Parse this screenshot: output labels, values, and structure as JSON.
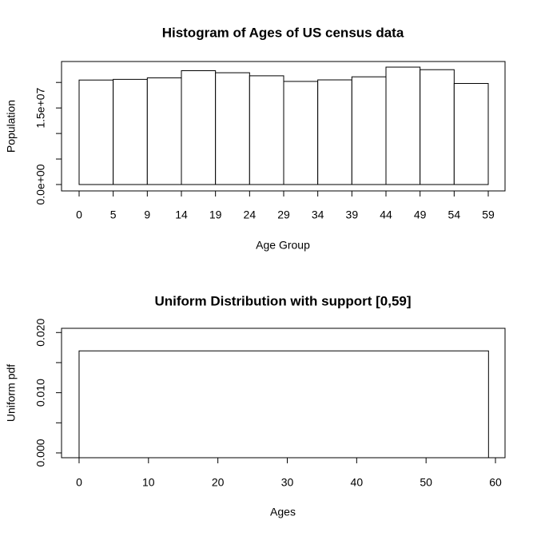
{
  "chart_data": [
    {
      "type": "histogram",
      "title": "Histogram of Ages of US census data",
      "xlabel": "Age Group",
      "ylabel": "Population",
      "edge_labels": [
        "0",
        "5",
        "9",
        "14",
        "19",
        "24",
        "29",
        "34",
        "39",
        "44",
        "49",
        "54",
        "59"
      ],
      "values": [
        20470000,
        20600000,
        20900000,
        22300000,
        21900000,
        21300000,
        20200000,
        20500000,
        21100000,
        23000000,
        22500000,
        19800000
      ],
      "color": "#ffffff",
      "ylim": [
        -1250000,
        24100000
      ],
      "yticks": [
        {
          "value": 0,
          "label": "0.0e+00"
        },
        {
          "value": 5000000,
          "label": null
        },
        {
          "value": 10000000,
          "label": null
        },
        {
          "value": 15000000,
          "label": "1.5e+07"
        },
        {
          "value": 20000000,
          "label": null
        }
      ]
    },
    {
      "type": "uniform",
      "title": "Uniform Distribution with support [0,59]",
      "xlabel": "Ages",
      "ylabel": "Uniform pdf",
      "support": [
        0,
        59
      ],
      "density": 0.01695,
      "color": "#ffffff",
      "xlim": [
        -2.53,
        61.38
      ],
      "xticks": [
        0,
        10,
        20,
        30,
        40,
        50,
        60
      ],
      "ylim": [
        -0.0008,
        0.0207
      ],
      "yticks": [
        {
          "value": 0,
          "label": "0.000"
        },
        {
          "value": 0.005,
          "label": null
        },
        {
          "value": 0.01,
          "label": "0.010"
        },
        {
          "value": 0.015,
          "label": null
        },
        {
          "value": 0.02,
          "label": "0.020"
        }
      ]
    }
  ]
}
